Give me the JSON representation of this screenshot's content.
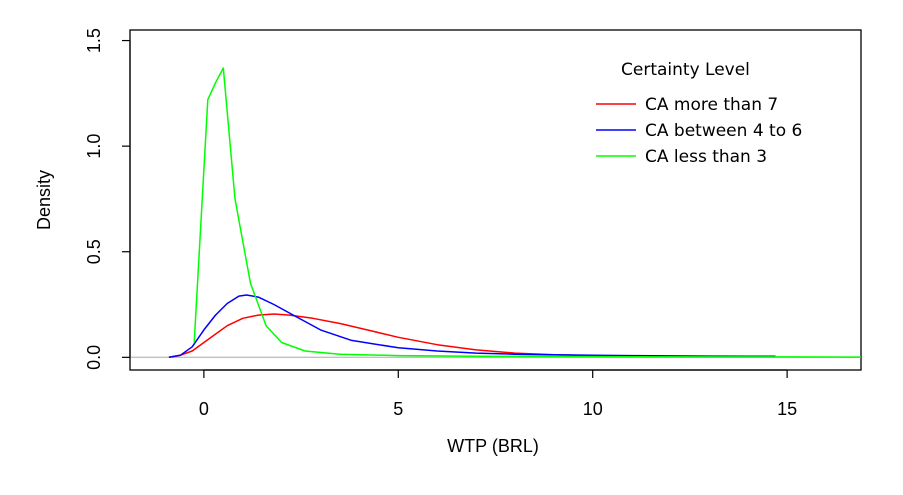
{
  "chart_data": {
    "type": "line",
    "xlabel": "WTP (BRL)",
    "ylabel": "Density",
    "xlim": [
      -1.9,
      16.9
    ],
    "ylim": [
      -0.06,
      1.55
    ],
    "x_ticks": [
      0,
      5,
      10,
      15
    ],
    "y_ticks": [
      0.0,
      0.5,
      1.0,
      1.5
    ],
    "x_tick_labels": [
      "0",
      "5",
      "10",
      "15"
    ],
    "y_tick_labels": [
      "0.0",
      "0.5",
      "1.0",
      "1.5"
    ],
    "grid": false,
    "baseline": 0,
    "baseline_color": "#c0c0c0",
    "legend": {
      "title": "Certainty Level",
      "position": "top-right"
    },
    "series": [
      {
        "name": "CA more than 7",
        "color": "#ff0000",
        "x": [
          -0.9,
          -0.6,
          -0.3,
          0.0,
          0.3,
          0.6,
          1.0,
          1.4,
          1.8,
          2.2,
          2.8,
          3.5,
          4.2,
          5.0,
          6.0,
          7.0,
          8.0,
          9.0,
          10.0,
          11.0,
          12.0
        ],
        "y": [
          0.0,
          0.01,
          0.03,
          0.07,
          0.11,
          0.15,
          0.185,
          0.2,
          0.205,
          0.2,
          0.185,
          0.16,
          0.13,
          0.095,
          0.06,
          0.035,
          0.02,
          0.012,
          0.008,
          0.005,
          0.004
        ]
      },
      {
        "name": "CA between 4 to 6",
        "color": "#0000ff",
        "x": [
          -0.9,
          -0.6,
          -0.3,
          0.0,
          0.3,
          0.6,
          0.9,
          1.1,
          1.4,
          1.8,
          2.3,
          3.0,
          3.8,
          5.0,
          6.0,
          7.0,
          8.0,
          9.0,
          10.0,
          11.0,
          12.0,
          13.0,
          14.0,
          14.7
        ],
        "y": [
          0.0,
          0.01,
          0.05,
          0.13,
          0.2,
          0.255,
          0.29,
          0.295,
          0.285,
          0.25,
          0.2,
          0.13,
          0.08,
          0.045,
          0.03,
          0.02,
          0.015,
          0.012,
          0.01,
          0.008,
          0.007,
          0.006,
          0.005,
          0.005
        ]
      },
      {
        "name": "CA less than 3",
        "color": "#00ff00",
        "x": [
          -0.25,
          0.1,
          0.3,
          0.5,
          0.8,
          1.2,
          1.6,
          2.0,
          2.6,
          3.5,
          5.0,
          7.0,
          9.0,
          11.0,
          13.0,
          15.0,
          16.9
        ],
        "y": [
          0.07,
          1.22,
          1.3,
          1.37,
          0.75,
          0.35,
          0.15,
          0.07,
          0.03,
          0.015,
          0.008,
          0.005,
          0.004,
          0.003,
          0.002,
          0.002,
          0.001
        ]
      }
    ]
  }
}
